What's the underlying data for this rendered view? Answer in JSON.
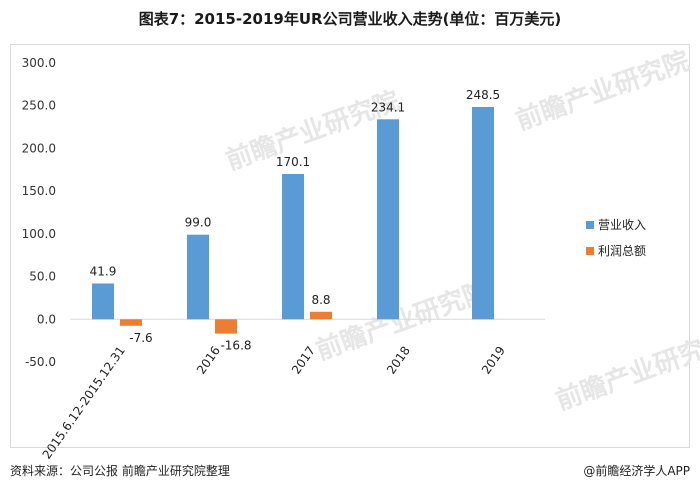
{
  "title": "图表7：2015-2019年UR公司营业收入走势(单位：百万美元)",
  "footer": {
    "source": "资料来源：公司公报 前瞻产业研究院整理",
    "brand": "@前瞻经济学人APP"
  },
  "colors": {
    "revenue": "#5b9bd5",
    "profit": "#ed7d31",
    "axis": "#d9d9d9",
    "grid": "#e0e0e0"
  },
  "chart_data": {
    "type": "bar",
    "categories": [
      "2015.6.12-2015.12.31",
      "2016",
      "2017",
      "2018",
      "2019"
    ],
    "series": [
      {
        "name": "营业收入",
        "values": [
          41.9,
          99.0,
          170.1,
          234.1,
          248.5
        ],
        "labels": [
          "41.9",
          "99.0",
          "170.1",
          "234.1",
          "248.5"
        ]
      },
      {
        "name": "利润总额",
        "values": [
          -7.6,
          -16.8,
          8.8,
          null,
          null
        ],
        "labels": [
          "-7.6",
          "-16.8",
          "8.8",
          "",
          ""
        ]
      }
    ],
    "yticks": [
      "-50.0",
      "0.0",
      "50.0",
      "100.0",
      "150.0",
      "200.0",
      "250.0",
      "300.0"
    ],
    "ylim": [
      -50,
      300
    ],
    "legend": "right"
  }
}
